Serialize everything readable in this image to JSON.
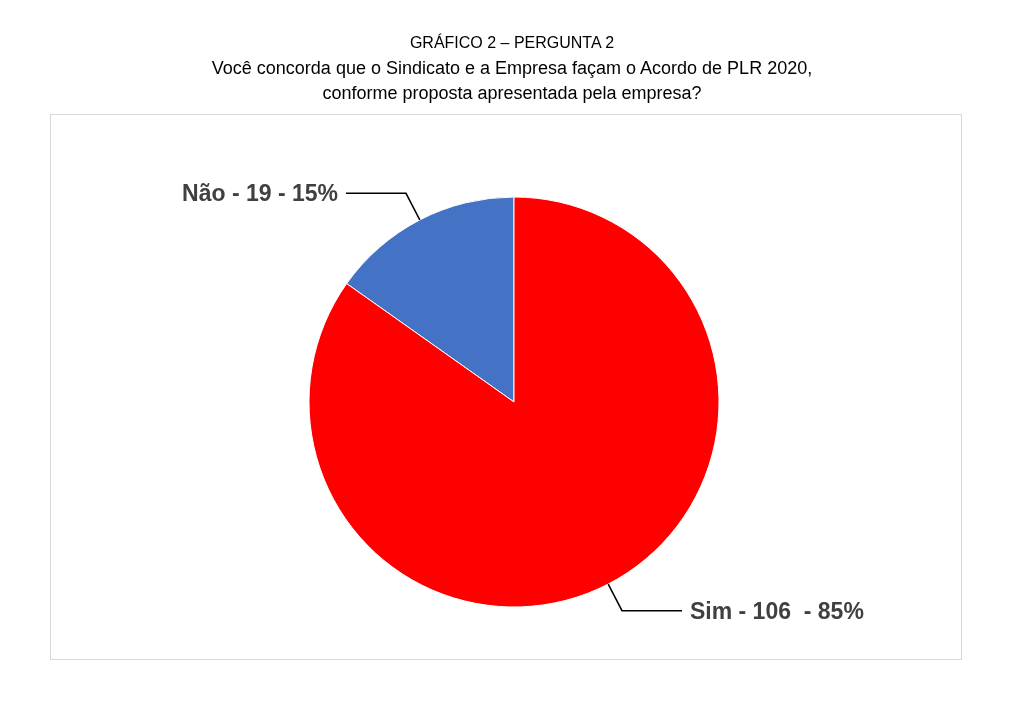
{
  "chart_data": {
    "type": "pie",
    "title": "GRÁFICO 2 – PERGUNTA 2",
    "subtitle": "Você concorda que o Sindicato e a Empresa façam o Acordo de PLR 2020, conforme proposta apresentada pela empresa?",
    "categories": [
      "Não",
      "Sim"
    ],
    "values": [
      19,
      106
    ],
    "colors": [
      "#4472c4",
      "#ff0000"
    ],
    "value_labels": [
      "19 - 15%",
      "106  - 85%"
    ],
    "annotations": [
      "-",
      "-"
    ]
  }
}
